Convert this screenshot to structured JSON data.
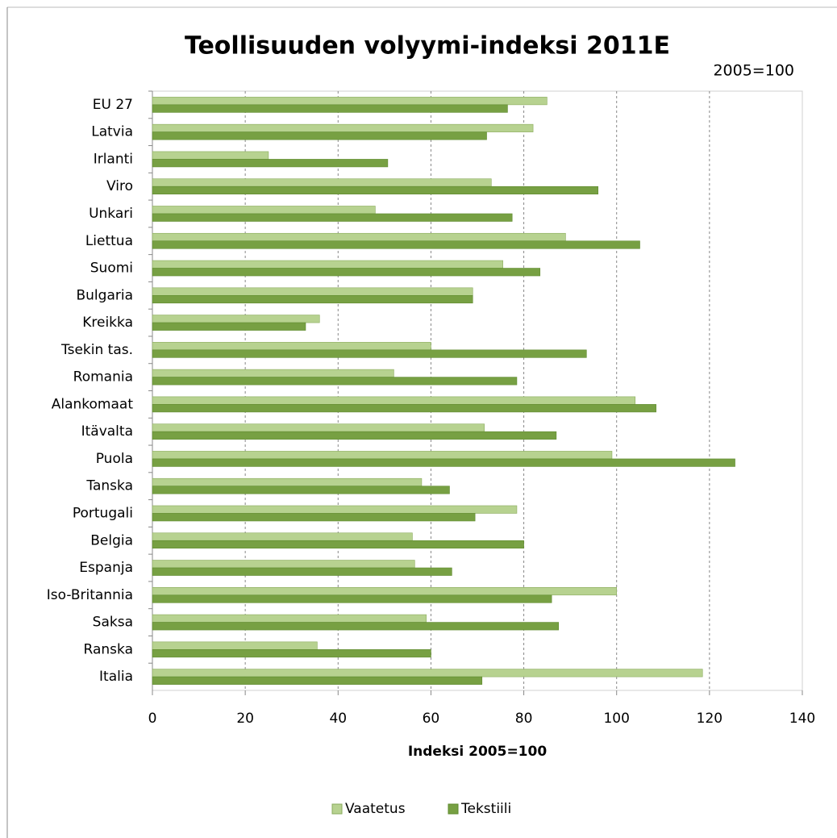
{
  "chart_data": {
    "type": "bar",
    "orientation": "horizontal",
    "title": "Teollisuuden volyymi-indeksi 2011E",
    "annotation": "2005=100",
    "xlabel": "Indeksi 2005=100",
    "categories": [
      "EU 27",
      "Latvia",
      "Irlanti",
      "Viro",
      "Unkari",
      "Liettua",
      "Suomi",
      "Bulgaria",
      "Kreikka",
      "Tsekin tas.",
      "Romania",
      "Alankomaat",
      "Itävalta",
      "Puola",
      "Tanska",
      "Portugali",
      "Belgia",
      "Espanja",
      "Iso-Britannia",
      "Saksa",
      "Ranska",
      "Italia"
    ],
    "series": [
      {
        "name": "Vaatetus",
        "color": "#b7d290",
        "values": [
          85,
          82,
          25,
          73,
          48,
          89,
          75.5,
          69,
          36,
          60,
          52,
          104,
          71.5,
          99,
          58,
          78.5,
          56,
          56.5,
          100,
          59,
          35.5,
          118.5
        ]
      },
      {
        "name": "Tekstiili",
        "color": "#77a043",
        "values": [
          76.5,
          72,
          50.7,
          96,
          77.5,
          105,
          83.5,
          69,
          33,
          93.5,
          78.5,
          108.5,
          87,
          125.5,
          64,
          69.5,
          80,
          64.5,
          86,
          87.5,
          60,
          71
        ]
      }
    ],
    "xlim": [
      0,
      140
    ],
    "xticks": [
      0,
      20,
      40,
      60,
      80,
      100,
      120,
      140
    ],
    "grid": true,
    "legend": "bottom"
  }
}
